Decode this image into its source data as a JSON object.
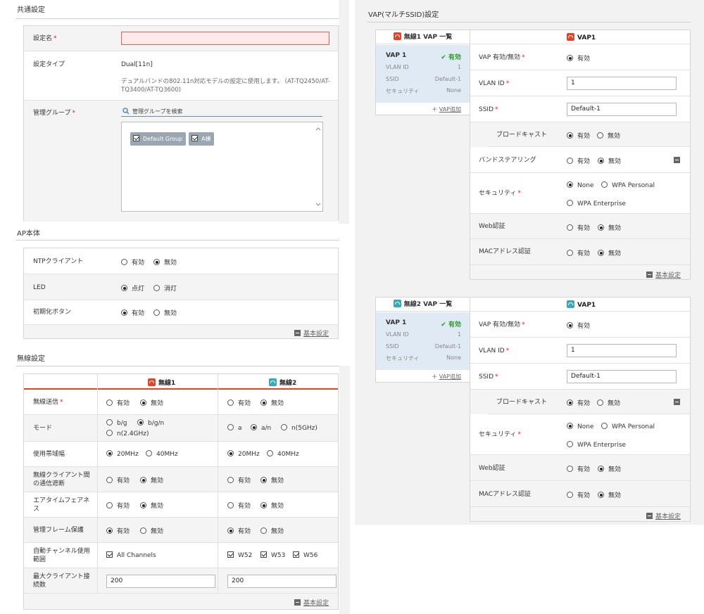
{
  "common": {
    "title": "共通設定",
    "name_label": "設定名",
    "name_value": "",
    "type_label": "設定タイプ",
    "type_value": "Dual[11n]",
    "type_desc1": "デュアルバンドの802.11n対応モデルの設定に使用します。 (AT-TQ2450/AT-",
    "type_desc2": "TQ3400/AT-TQ3600)",
    "group_label": "管理グループ",
    "group_search_placeholder": "管理グループを検索",
    "groups": [
      "Default Group",
      "A棟"
    ]
  },
  "ap": {
    "title": "AP本体",
    "ntp_label": "NTPクライアント",
    "led_label": "LED",
    "init_label": "初期化ボタン",
    "on": "有効",
    "off": "無効",
    "led_on": "点灯",
    "led_off": "消灯",
    "basic": "基本設定"
  },
  "wireless": {
    "title": "無線設定",
    "col1": "無線1",
    "col2": "無線2",
    "rows": {
      "tx": "無線送信",
      "mode": "モード",
      "bw": "使用帯域幅",
      "isolation1": "無線クライアント間",
      "isolation2": "の通信遮断",
      "airtime1": "エアタイムフェアネ",
      "airtime2": "ス",
      "mgmt": "管理フレーム保護",
      "autoch1": "自動チャンネル使用",
      "autoch2": "範囲",
      "maxcl1": "最大クライアント接",
      "maxcl2": "続数"
    },
    "mode_bg": "b/g",
    "mode_bgn": "b/g/n",
    "mode_n24": "n(2.4GHz)",
    "mode_a": "a",
    "mode_an": "a/n",
    "mode_n5": "n(5GHz)",
    "bw20": "20MHz",
    "bw40": "40MHz",
    "all_channels": "All Channels",
    "w52": "W52",
    "w53": "W53",
    "w56": "W56",
    "maxcl_value1": "200",
    "maxcl_value2": "200",
    "on": "有効",
    "off": "無効",
    "basic": "基本設定"
  },
  "vap": {
    "title": "VAP(マルチSSID)設定",
    "blocks": [
      {
        "list_header": "無線1  VAP 一覧",
        "vap_name": "VAP 1",
        "status": "有効",
        "vlan_label": "VLAN ID",
        "vlan_val": "1",
        "ssid_label": "SSID",
        "ssid_val": "Default-1",
        "sec_label": "セキュリティ",
        "sec_val": "None",
        "add": "VAP追加",
        "detail_header": "VAP1",
        "enable_label": "VAP 有効/無効",
        "vlan_field_label": "VLAN ID",
        "vlan_input": "1",
        "ssid_field_label": "SSID",
        "ssid_input": "Default-1",
        "broadcast_label": "ブロードキャスト",
        "band_label": "バンドステアリング",
        "security_label": "セキュリティ",
        "none": "None",
        "wpa_personal": "WPA Personal",
        "wpa_enterprise": "WPA Enterprise",
        "web_label": "Web認証",
        "mac_label": "MACアドレス認証",
        "on": "有効",
        "off": "無効",
        "basic": "基本設定"
      },
      {
        "list_header": "無線2  VAP 一覧",
        "vap_name": "VAP 1",
        "status": "有効",
        "vlan_label": "VLAN ID",
        "vlan_val": "1",
        "ssid_label": "SSID",
        "ssid_val": "Default-1",
        "sec_label": "セキュリティ",
        "sec_val": "None",
        "add": "VAP追加",
        "detail_header": "VAP1",
        "enable_label": "VAP 有効/無効",
        "vlan_field_label": "VLAN ID",
        "vlan_input": "1",
        "ssid_field_label": "SSID",
        "ssid_input": "Default-1",
        "broadcast_label": "ブロードキャスト",
        "security_label": "セキュリティ",
        "none": "None",
        "wpa_personal": "WPA Personal",
        "wpa_enterprise": "WPA Enterprise",
        "web_label": "Web認証",
        "mac_label": "MACアドレス認証",
        "on": "有効",
        "off": "無効",
        "basic": "基本設定"
      }
    ]
  },
  "colors": {
    "required": "#e02020",
    "radio1_icon": "#e0452c",
    "radio2_icon": "#3aa8b8",
    "enabled": "#2a9a2a",
    "list_selected": "#dfeaf4"
  },
  "icons": [
    "search-icon",
    "wifi-icon",
    "check-icon",
    "plus-icon",
    "minus-icon"
  ]
}
